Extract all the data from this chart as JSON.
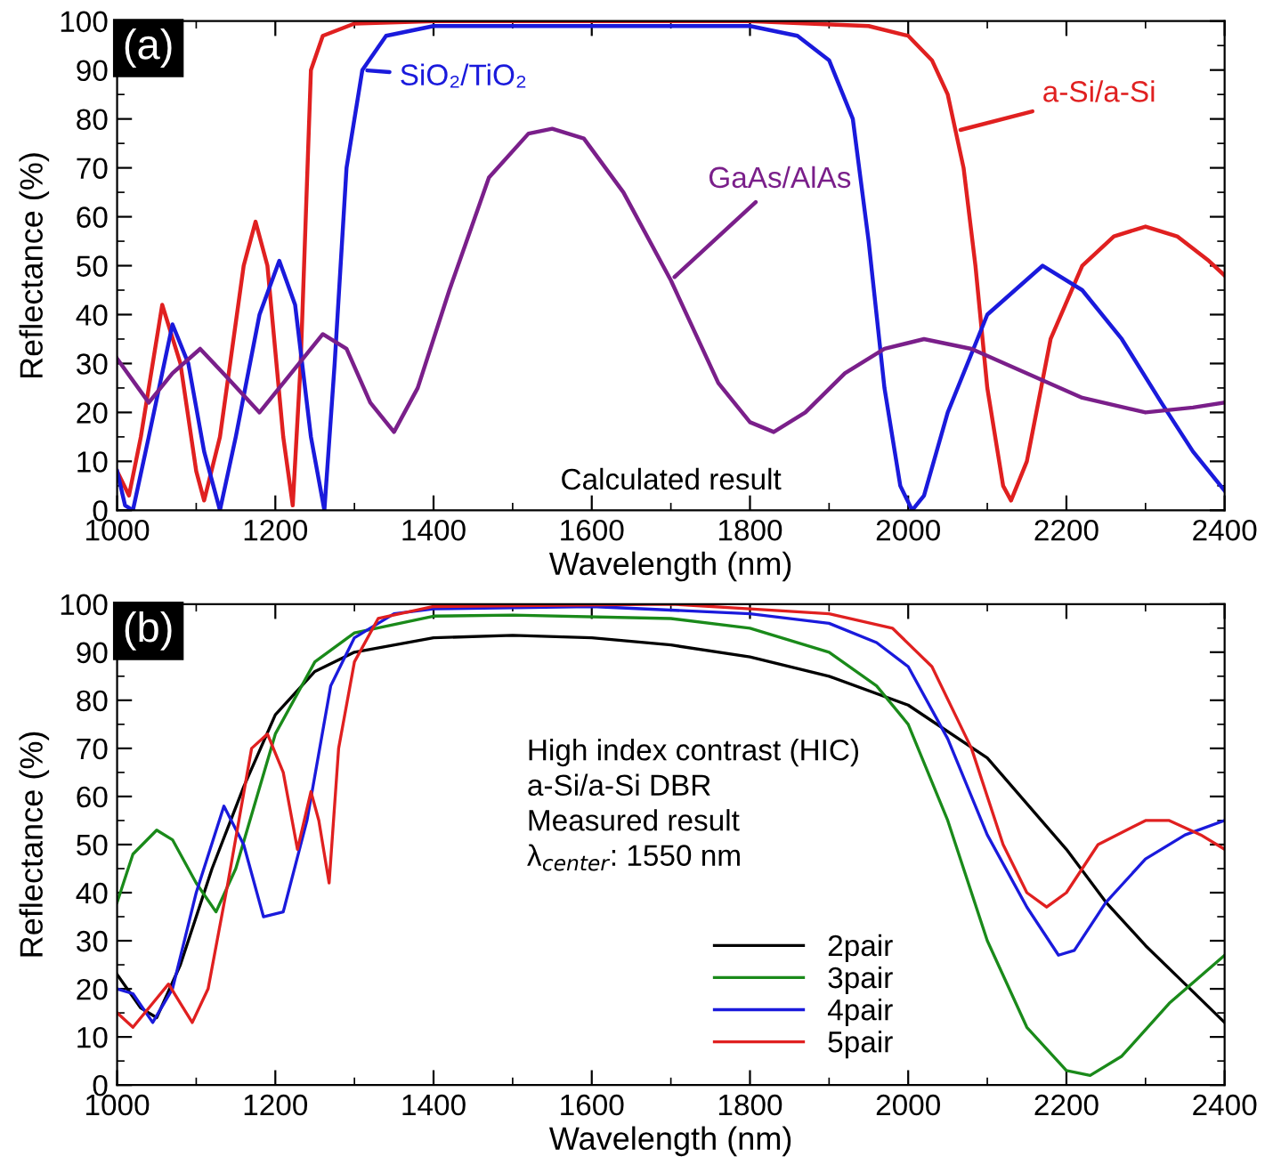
{
  "chart_data": [
    {
      "type": "line",
      "xlabel": "Wavelength (nm)",
      "ylabel": "Reflectance (%)",
      "xlim": [
        1000,
        2400
      ],
      "ylim": [
        0,
        100
      ],
      "xticks": [
        1000,
        1200,
        1400,
        1600,
        1800,
        2000,
        2200,
        2400
      ],
      "yticks": [
        0,
        10,
        20,
        30,
        40,
        50,
        60,
        70,
        80,
        90,
        100
      ],
      "grid": false,
      "marker": "none",
      "line_style": "solid",
      "annotations": [
        "(a)",
        "Calculated result"
      ],
      "series": [
        {
          "name": "a-Si/a-Si",
          "color": "#e02020",
          "x": [
            1000,
            1015,
            1030,
            1057,
            1080,
            1100,
            1110,
            1130,
            1160,
            1175,
            1190,
            1210,
            1222,
            1232,
            1245,
            1260,
            1300,
            1400,
            1800,
            1950,
            2000,
            2030,
            2050,
            2070,
            2085,
            2100,
            2120,
            2130,
            2150,
            2180,
            2220,
            2260,
            2300,
            2340,
            2380,
            2400
          ],
          "values": [
            8,
            3,
            15,
            42,
            30,
            8,
            2,
            15,
            50,
            59,
            50,
            15,
            1,
            30,
            90,
            97,
            99.5,
            100,
            100,
            99,
            97,
            92,
            85,
            70,
            50,
            25,
            5,
            2,
            10,
            35,
            50,
            56,
            58,
            56,
            51,
            48
          ]
        },
        {
          "name": "SiO₂/TiO₂",
          "color": "#1a1adc",
          "x": [
            1000,
            1010,
            1020,
            1040,
            1070,
            1090,
            1110,
            1130,
            1150,
            1180,
            1205,
            1225,
            1245,
            1262,
            1275,
            1290,
            1310,
            1340,
            1400,
            1800,
            1860,
            1900,
            1930,
            1950,
            1970,
            1990,
            2005,
            2020,
            2050,
            2100,
            2170,
            2220,
            2270,
            2320,
            2360,
            2400
          ],
          "values": [
            8,
            1,
            0,
            15,
            38,
            30,
            12,
            0,
            15,
            40,
            51,
            42,
            15,
            0,
            30,
            70,
            90,
            97,
            99,
            99,
            97,
            92,
            80,
            55,
            25,
            5,
            0,
            3,
            20,
            40,
            50,
            45,
            35,
            22,
            12,
            4
          ]
        },
        {
          "name": "GaAs/AlAs",
          "color": "#7a1f8a",
          "x": [
            1000,
            1040,
            1070,
            1105,
            1140,
            1180,
            1220,
            1260,
            1290,
            1320,
            1350,
            1380,
            1420,
            1470,
            1520,
            1550,
            1590,
            1640,
            1700,
            1760,
            1800,
            1830,
            1870,
            1920,
            1970,
            2020,
            2080,
            2150,
            2220,
            2300,
            2360,
            2400
          ],
          "values": [
            31,
            22,
            28,
            33,
            27,
            20,
            28,
            36,
            33,
            22,
            16,
            25,
            45,
            68,
            77,
            78,
            76,
            65,
            47,
            26,
            18,
            16,
            20,
            28,
            33,
            35,
            33,
            28,
            23,
            20,
            21,
            22
          ]
        }
      ]
    },
    {
      "type": "line",
      "xlabel": "Wavelength (nm)",
      "ylabel": "Reflectance (%)",
      "xlim": [
        1000,
        2400
      ],
      "ylim": [
        0,
        100
      ],
      "xticks": [
        1000,
        1200,
        1400,
        1600,
        1800,
        2000,
        2200,
        2400
      ],
      "yticks": [
        0,
        10,
        20,
        30,
        40,
        50,
        60,
        70,
        80,
        90,
        100
      ],
      "grid": false,
      "legend": "bottom",
      "marker": "none",
      "line_style": "solid",
      "annotations": [
        "(b)",
        "High index contrast (HIC)\na-Si/a-Si DBR\nMeasured result\nλ$_{center}$: 1550 nm"
      ],
      "series": [
        {
          "name": "2pair",
          "color": "#000000",
          "x": [
            1000,
            1030,
            1050,
            1080,
            1120,
            1160,
            1200,
            1250,
            1300,
            1400,
            1500,
            1600,
            1700,
            1800,
            1900,
            2000,
            2100,
            2200,
            2250,
            2300,
            2350,
            2400
          ],
          "values": [
            23,
            16,
            14,
            25,
            45,
            62,
            77,
            86,
            90,
            93,
            93.5,
            93,
            91.5,
            89,
            85,
            79,
            68,
            49,
            38,
            29,
            21,
            13
          ]
        },
        {
          "name": "3pair",
          "color": "#1a8a1a",
          "x": [
            1000,
            1020,
            1050,
            1070,
            1100,
            1125,
            1150,
            1200,
            1250,
            1300,
            1400,
            1500,
            1700,
            1800,
            1900,
            1960,
            2000,
            2050,
            2100,
            2150,
            2200,
            2230,
            2270,
            2330,
            2400
          ],
          "values": [
            38,
            48,
            53,
            51,
            42,
            36,
            45,
            73,
            88,
            94,
            97.5,
            97.7,
            97,
            95,
            90,
            83,
            75,
            55,
            30,
            12,
            3,
            2,
            6,
            17,
            27
          ]
        },
        {
          "name": "4pair",
          "color": "#1a1adc",
          "x": [
            1000,
            1020,
            1045,
            1070,
            1100,
            1135,
            1160,
            1185,
            1210,
            1240,
            1270,
            1300,
            1350,
            1400,
            1600,
            1800,
            1900,
            1960,
            2000,
            2050,
            2100,
            2150,
            2190,
            2210,
            2250,
            2300,
            2350,
            2400
          ],
          "values": [
            20,
            19,
            13,
            20,
            40,
            58,
            50,
            35,
            36,
            55,
            83,
            93,
            98,
            99,
            99.5,
            98,
            96,
            92,
            87,
            72,
            52,
            37,
            27,
            28,
            38,
            47,
            52,
            55
          ]
        },
        {
          "name": "5pair",
          "color": "#e02020",
          "x": [
            1000,
            1020,
            1045,
            1065,
            1080,
            1095,
            1115,
            1140,
            1170,
            1190,
            1210,
            1228,
            1245,
            1255,
            1268,
            1280,
            1300,
            1330,
            1400,
            1700,
            1800,
            1900,
            1980,
            2030,
            2080,
            2120,
            2150,
            2175,
            2200,
            2240,
            2300,
            2330,
            2370,
            2400
          ],
          "values": [
            15,
            12,
            17,
            21,
            17,
            13,
            20,
            42,
            70,
            73,
            65,
            49,
            61,
            55,
            42,
            70,
            88,
            97,
            99.5,
            100,
            99,
            98,
            95,
            87,
            70,
            50,
            40,
            37,
            40,
            50,
            55,
            55,
            52,
            49
          ]
        }
      ]
    }
  ]
}
